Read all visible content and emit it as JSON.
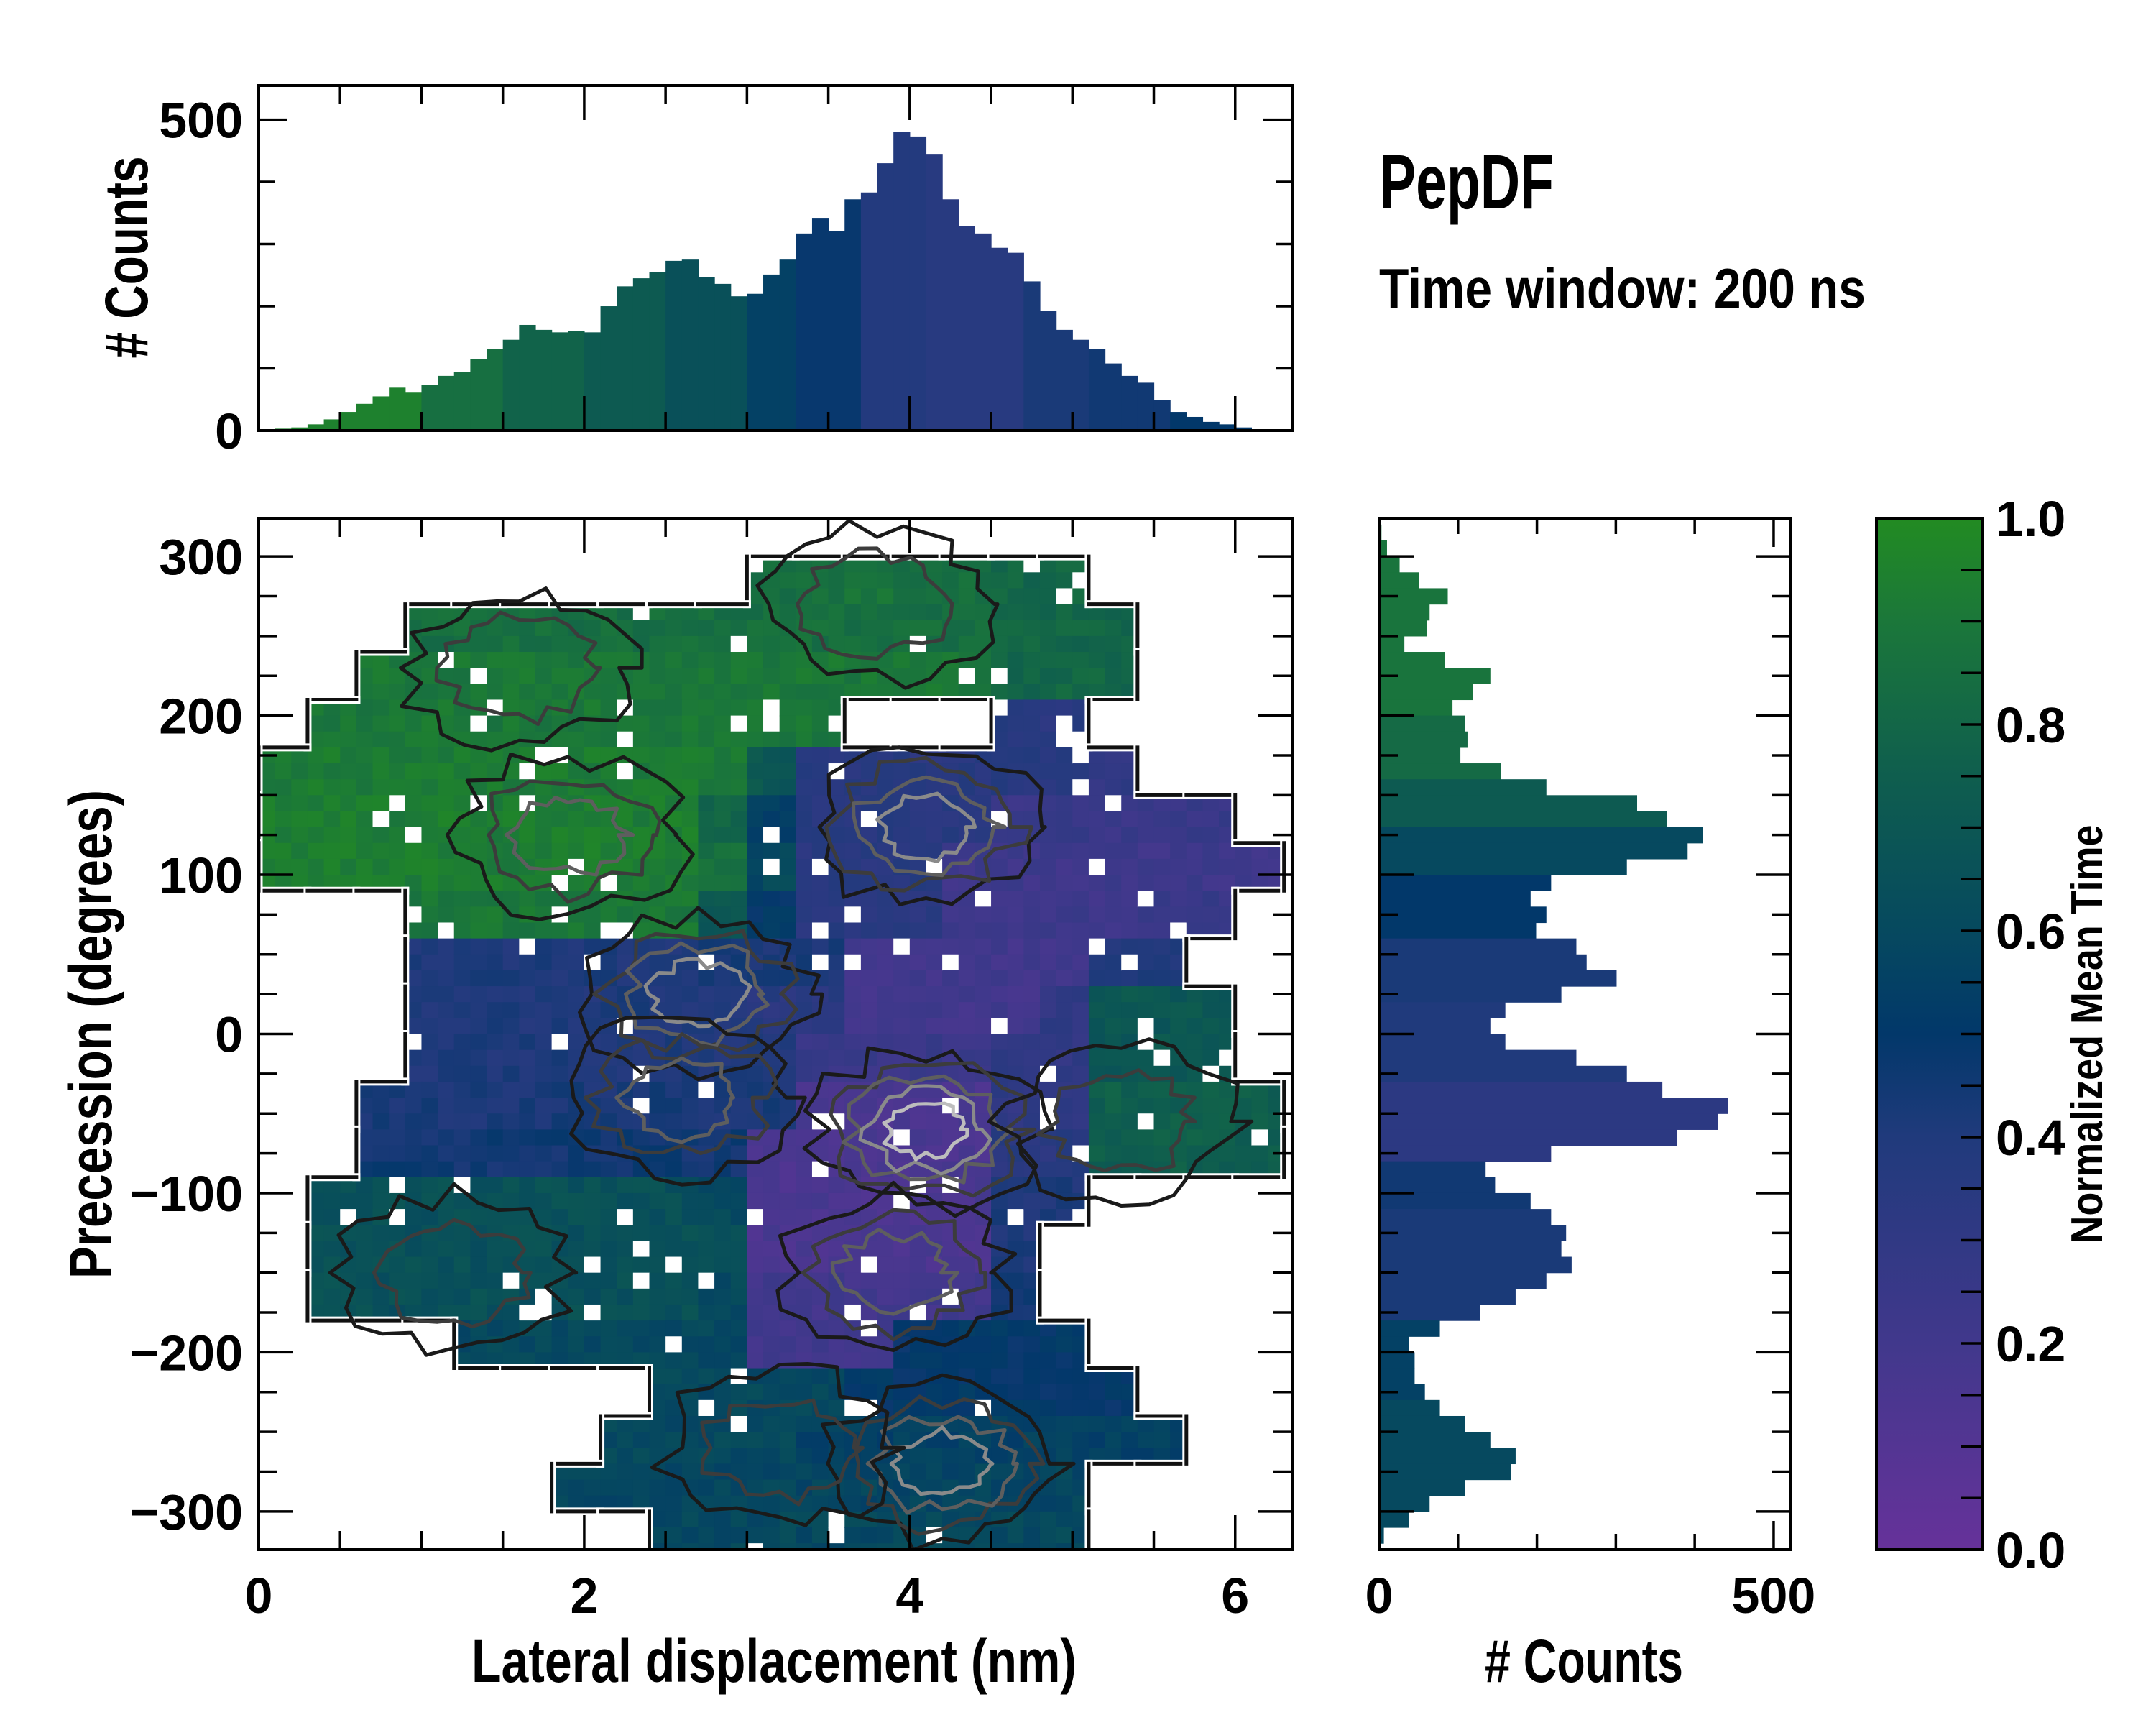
{
  "title": "PepDF",
  "subtitle": "Time window: 200 ns",
  "chart_data": {
    "type": "heatmap",
    "main": {
      "xlabel": "Lateral displacement (nm)",
      "ylabel": "Precession (degrees)",
      "xlim": [
        0,
        6.35
      ],
      "ylim": [
        -324,
        324
      ],
      "xticks": [
        0,
        2,
        4,
        6
      ],
      "xtick_labels": [
        "0",
        "2",
        "4",
        "6"
      ],
      "x_minor_step": 0.5,
      "yticks": [
        -300,
        -200,
        -100,
        0,
        100,
        200,
        300
      ],
      "ytick_labels": [
        "−300",
        "−200",
        "−100",
        "0",
        "100",
        "200",
        "300"
      ],
      "y_minor_step": 25,
      "grid_x_start": 0,
      "grid_x_step": 0.3,
      "grid_y_top": 330,
      "grid_y_step": 30,
      "mean_time_grid": [
        [
          null,
          null,
          null,
          null,
          null,
          null,
          null,
          null,
          null,
          null,
          null,
          null,
          null,
          null,
          null,
          null,
          null,
          null,
          null,
          null,
          null
        ],
        [
          null,
          null,
          null,
          null,
          null,
          null,
          null,
          null,
          null,
          null,
          0.85,
          0.85,
          0.88,
          0.85,
          0.85,
          0.8,
          0.8,
          null,
          null,
          null,
          null
        ],
        [
          null,
          null,
          null,
          0.85,
          0.85,
          0.85,
          0.85,
          0.85,
          0.85,
          0.85,
          0.85,
          0.85,
          0.85,
          0.85,
          0.85,
          0.82,
          0.8,
          0.8,
          null,
          null,
          null
        ],
        [
          null,
          null,
          0.9,
          0.9,
          0.9,
          0.9,
          0.9,
          0.9,
          0.9,
          0.9,
          0.9,
          0.9,
          0.9,
          0.9,
          0.9,
          0.8,
          0.8,
          0.8,
          null,
          null,
          null
        ],
        [
          null,
          0.9,
          0.9,
          0.9,
          0.9,
          0.9,
          0.9,
          0.9,
          0.9,
          0.9,
          0.9,
          0.9,
          null,
          null,
          null,
          0.35,
          0.35,
          null,
          null,
          null,
          null
        ],
        [
          0.92,
          0.92,
          0.92,
          0.92,
          0.92,
          0.92,
          0.92,
          0.92,
          0.92,
          0.92,
          0.7,
          0.35,
          0.35,
          0.35,
          0.35,
          0.35,
          0.35,
          0.3,
          null,
          null,
          null
        ],
        [
          0.93,
          0.93,
          0.93,
          0.93,
          0.93,
          0.93,
          0.93,
          0.93,
          0.93,
          0.8,
          0.55,
          0.35,
          0.35,
          0.35,
          0.35,
          0.25,
          0.25,
          0.25,
          0.25,
          0.25,
          null
        ],
        [
          0.93,
          0.93,
          0.93,
          0.93,
          0.93,
          0.93,
          0.93,
          0.93,
          0.93,
          0.85,
          0.6,
          0.35,
          0.35,
          0.35,
          0.22,
          0.22,
          0.22,
          0.22,
          0.22,
          0.22,
          0.22
        ],
        [
          null,
          null,
          null,
          0.9,
          0.9,
          0.9,
          0.9,
          0.9,
          0.9,
          0.7,
          0.5,
          0.35,
          0.35,
          0.35,
          0.22,
          0.22,
          0.22,
          0.22,
          0.25,
          0.25,
          null
        ],
        [
          null,
          null,
          null,
          0.4,
          0.4,
          0.4,
          0.4,
          0.4,
          0.4,
          0.42,
          0.42,
          0.42,
          0.2,
          0.2,
          0.2,
          0.2,
          0.2,
          0.4,
          0.4,
          null,
          null
        ],
        [
          null,
          null,
          null,
          0.4,
          0.4,
          0.4,
          0.4,
          0.4,
          0.4,
          0.4,
          0.35,
          0.35,
          0.2,
          0.2,
          0.2,
          0.2,
          0.3,
          0.7,
          0.7,
          0.7,
          null
        ],
        [
          null,
          null,
          null,
          0.4,
          0.4,
          0.4,
          0.4,
          0.4,
          0.4,
          0.4,
          0.4,
          0.25,
          0.25,
          0.25,
          0.25,
          0.3,
          0.3,
          0.7,
          0.7,
          0.7,
          null
        ],
        [
          null,
          null,
          0.42,
          0.42,
          0.42,
          0.42,
          0.42,
          0.42,
          0.42,
          0.42,
          0.42,
          0.15,
          0.15,
          0.15,
          0.15,
          0.3,
          0.3,
          0.75,
          0.75,
          0.75,
          0.75
        ],
        [
          null,
          null,
          0.45,
          0.45,
          0.45,
          0.45,
          0.45,
          0.45,
          0.45,
          0.45,
          0.15,
          0.15,
          0.15,
          0.15,
          0.15,
          0.35,
          0.35,
          0.75,
          0.75,
          0.75,
          0.75
        ],
        [
          null,
          0.65,
          0.65,
          0.65,
          0.65,
          0.65,
          0.65,
          0.65,
          0.65,
          0.6,
          0.15,
          0.15,
          0.15,
          0.15,
          0.15,
          0.4,
          0.4,
          null,
          null,
          null,
          null
        ],
        [
          null,
          0.65,
          0.65,
          0.65,
          0.65,
          0.65,
          0.65,
          0.65,
          0.65,
          0.65,
          0.15,
          0.15,
          0.15,
          0.15,
          0.15,
          0.4,
          null,
          null,
          null,
          null,
          null
        ],
        [
          null,
          0.65,
          0.65,
          0.65,
          0.65,
          0.65,
          0.65,
          0.65,
          0.65,
          0.6,
          0.2,
          0.2,
          0.2,
          0.2,
          0.2,
          0.45,
          null,
          null,
          null,
          null,
          null
        ],
        [
          null,
          null,
          null,
          null,
          0.6,
          0.6,
          0.6,
          0.6,
          0.6,
          0.6,
          0.2,
          0.2,
          0.2,
          0.5,
          0.5,
          0.5,
          0.5,
          null,
          null,
          null,
          null
        ],
        [
          null,
          null,
          null,
          null,
          null,
          null,
          null,
          null,
          0.6,
          0.6,
          0.6,
          0.6,
          0.5,
          0.5,
          0.5,
          0.5,
          0.5,
          0.5,
          null,
          null,
          null
        ],
        [
          null,
          null,
          null,
          null,
          null,
          null,
          null,
          0.6,
          0.6,
          0.6,
          0.6,
          0.55,
          0.55,
          0.55,
          0.55,
          0.55,
          0.55,
          0.55,
          0.55,
          null,
          null
        ],
        [
          null,
          null,
          null,
          null,
          null,
          null,
          0.58,
          0.58,
          0.58,
          0.58,
          0.58,
          0.58,
          0.58,
          0.58,
          0.58,
          0.58,
          0.58,
          null,
          null,
          null,
          null
        ],
        [
          null,
          null,
          null,
          null,
          null,
          null,
          null,
          null,
          0.6,
          0.6,
          0.6,
          0.6,
          0.6,
          0.6,
          0.6,
          0.6,
          0.6,
          null,
          null,
          null,
          null
        ]
      ],
      "density_peaks": [
        {
          "x": 4.1,
          "y": -60,
          "levels": 5
        },
        {
          "x": 2.7,
          "y": 25,
          "levels": 4
        },
        {
          "x": 4.2,
          "y": -270,
          "levels": 4
        },
        {
          "x": 3.9,
          "y": -150,
          "levels": 3
        },
        {
          "x": 1.9,
          "y": 125,
          "levels": 3
        },
        {
          "x": 4.1,
          "y": 130,
          "levels": 4
        },
        {
          "x": 1.6,
          "y": 230,
          "levels": 2
        },
        {
          "x": 3.8,
          "y": 270,
          "levels": 2
        },
        {
          "x": 1.2,
          "y": -150,
          "levels": 2
        },
        {
          "x": 2.6,
          "y": -40,
          "levels": 3
        },
        {
          "x": 5.3,
          "y": -55,
          "levels": 2
        },
        {
          "x": 3.2,
          "y": -260,
          "levels": 2
        }
      ]
    },
    "top_histogram": {
      "ylabel": "# Counts",
      "ylim": [
        0,
        555
      ],
      "yticks": [
        0,
        500
      ],
      "ytick_labels": [
        "0",
        "500"
      ],
      "y_minor_step": 100,
      "bin_start": 0,
      "bin_width": 0.1,
      "counts": [
        1,
        3,
        5,
        10,
        18,
        30,
        43,
        55,
        69,
        61,
        73,
        88,
        94,
        115,
        131,
        146,
        170,
        162,
        158,
        160,
        158,
        200,
        232,
        245,
        255,
        273,
        275,
        247,
        236,
        216,
        220,
        251,
        275,
        317,
        341,
        321,
        372,
        383,
        430,
        480,
        473,
        445,
        372,
        329,
        317,
        294,
        286,
        240,
        193,
        162,
        146,
        131,
        108,
        88,
        77,
        49,
        30,
        22,
        14,
        10,
        5,
        2,
        1
      ],
      "mean_time": [
        0.95,
        0.95,
        0.95,
        0.95,
        0.95,
        0.95,
        0.95,
        0.95,
        0.95,
        0.95,
        0.85,
        0.85,
        0.85,
        0.85,
        0.85,
        0.78,
        0.78,
        0.78,
        0.78,
        0.78,
        0.72,
        0.72,
        0.72,
        0.72,
        0.72,
        0.65,
        0.65,
        0.65,
        0.65,
        0.65,
        0.55,
        0.55,
        0.55,
        0.48,
        0.48,
        0.48,
        0.48,
        0.38,
        0.38,
        0.38,
        0.38,
        0.35,
        0.35,
        0.35,
        0.35,
        0.35,
        0.35,
        0.42,
        0.42,
        0.42,
        0.42,
        0.45,
        0.45,
        0.45,
        0.45,
        0.45,
        0.5,
        0.5,
        0.5,
        0.5,
        0.5,
        0.5,
        0.5
      ]
    },
    "right_histogram": {
      "xlabel": "# Counts",
      "xlim": [
        0,
        521
      ],
      "xticks": [
        0,
        500
      ],
      "xtick_labels": [
        "0",
        "500"
      ],
      "x_minor_step": 100,
      "bin_top": 320,
      "bin_width": 10,
      "counts": [
        3,
        10,
        26,
        51,
        87,
        64,
        61,
        32,
        83,
        141,
        119,
        93,
        109,
        112,
        103,
        154,
        212,
        327,
        365,
        410,
        391,
        314,
        218,
        192,
        212,
        199,
        250,
        263,
        301,
        231,
        160,
        141,
        160,
        250,
        314,
        359,
        442,
        429,
        378,
        218,
        135,
        147,
        192,
        218,
        237,
        231,
        244,
        212,
        173,
        128,
        77,
        38,
        45,
        45,
        58,
        77,
        109,
        141,
        173,
        167,
        109,
        64,
        38,
        6
      ],
      "mean_time": [
        0.88,
        0.88,
        0.88,
        0.88,
        0.88,
        0.88,
        0.88,
        0.88,
        0.88,
        0.88,
        0.88,
        0.88,
        0.82,
        0.82,
        0.82,
        0.82,
        0.72,
        0.72,
        0.72,
        0.6,
        0.6,
        0.6,
        0.5,
        0.5,
        0.5,
        0.5,
        0.42,
        0.42,
        0.42,
        0.42,
        0.4,
        0.4,
        0.4,
        0.4,
        0.4,
        0.33,
        0.33,
        0.33,
        0.33,
        0.33,
        0.45,
        0.45,
        0.45,
        0.42,
        0.42,
        0.42,
        0.42,
        0.42,
        0.42,
        0.42,
        0.55,
        0.55,
        0.55,
        0.55,
        0.55,
        0.6,
        0.6,
        0.6,
        0.6,
        0.6,
        0.6,
        0.6,
        0.6,
        0.6
      ]
    },
    "colorbar": {
      "label": "Normalized Mean Time",
      "range": [
        0,
        1
      ],
      "ticks": [
        0,
        0.2,
        0.4,
        0.6,
        0.8,
        1.0
      ],
      "tick_labels": [
        "0.0",
        "0.2",
        "0.4",
        "0.6",
        "0.8",
        "1.0"
      ],
      "minor_step": 0.05,
      "colormap": [
        {
          "v": 0.0,
          "color": "#66329a"
        },
        {
          "v": 0.2,
          "color": "#41388c"
        },
        {
          "v": 0.4,
          "color": "#203a7c"
        },
        {
          "v": 0.5,
          "color": "#02386a"
        },
        {
          "v": 0.6,
          "color": "#06495f"
        },
        {
          "v": 0.75,
          "color": "#0f5e4e"
        },
        {
          "v": 0.9,
          "color": "#1b773a"
        },
        {
          "v": 1.0,
          "color": "#228b22"
        }
      ]
    }
  }
}
